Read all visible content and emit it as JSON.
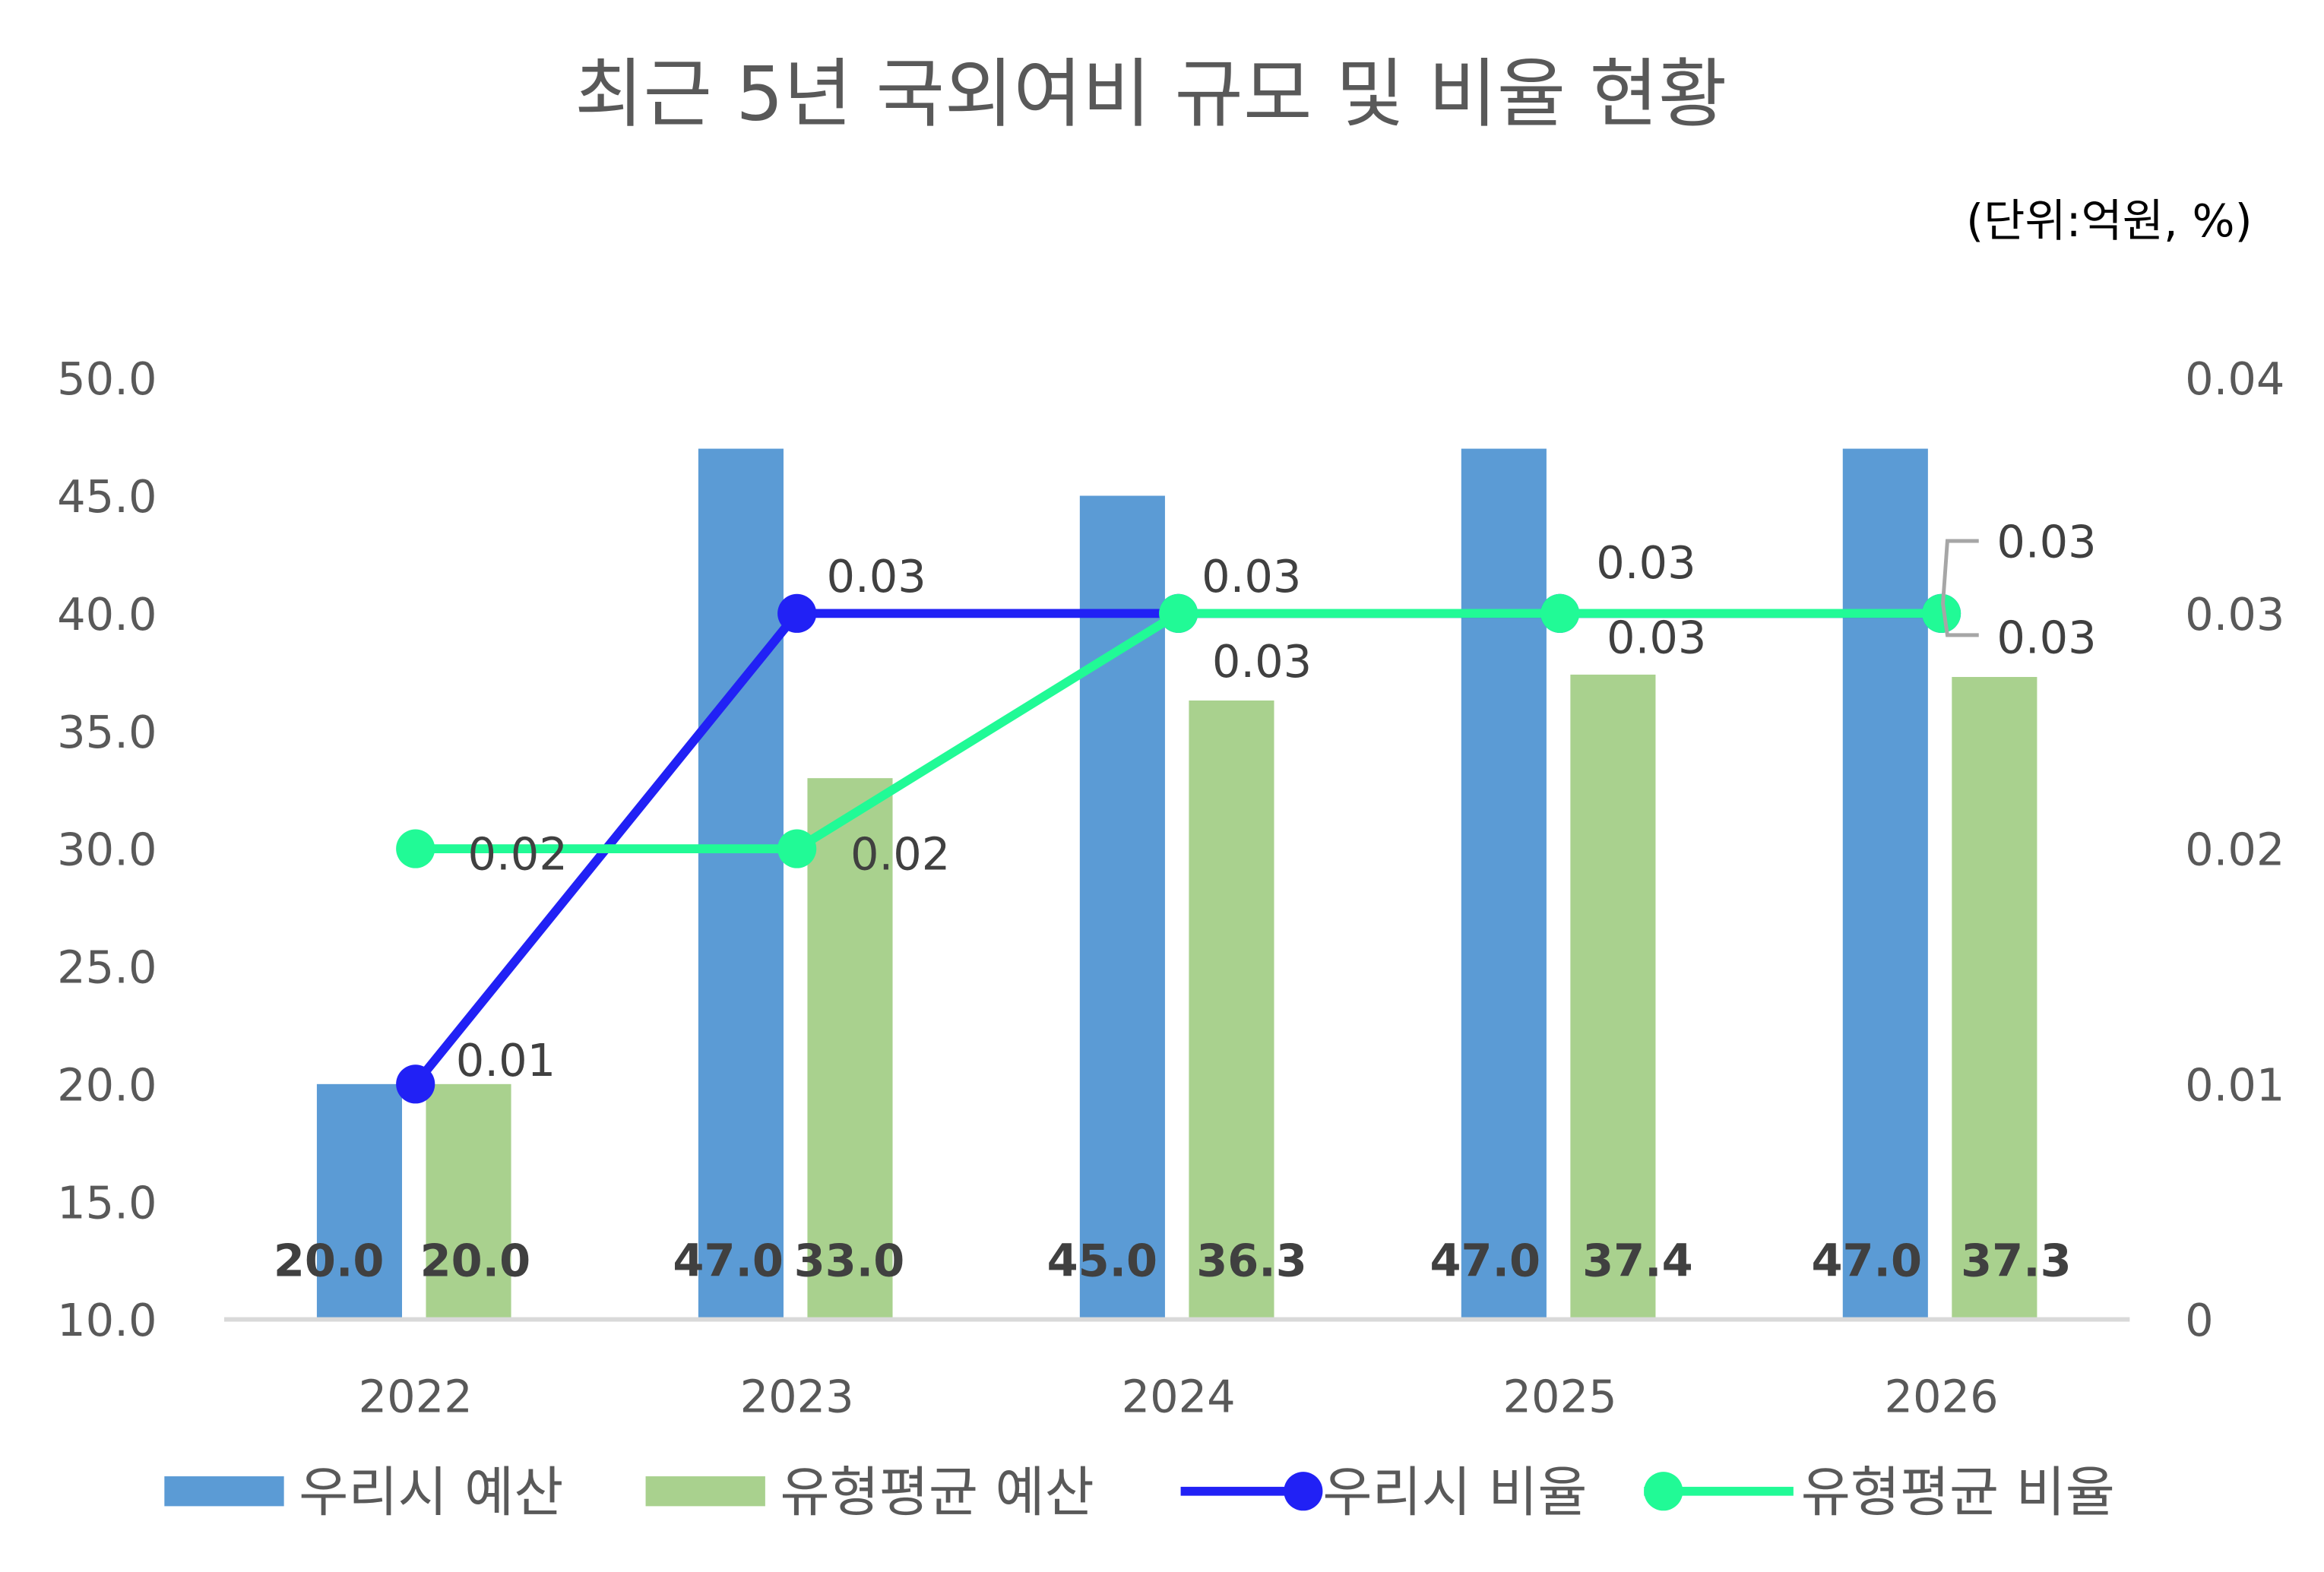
{
  "chart_data": {
    "type": "bar+line",
    "title": "최근 5년 국외여비 규모 및 비율 현황",
    "unit_note": "(단위:억원, %)",
    "categories": [
      "2022",
      "2023",
      "2024",
      "2025",
      "2026"
    ],
    "left_axis": {
      "ylim": [
        10,
        50
      ],
      "ticks": [
        "10.0",
        "15.0",
        "20.0",
        "25.0",
        "30.0",
        "35.0",
        "40.0",
        "45.0",
        "50.0"
      ]
    },
    "right_axis": {
      "ylim": [
        0,
        0.04
      ],
      "ticks": [
        "0",
        "0.01",
        "0.02",
        "0.03",
        "0.04"
      ]
    },
    "grid": false,
    "legend_position": "bottom",
    "series": [
      {
        "name": "우리시 예산",
        "type": "bar",
        "axis": "left",
        "color": "#5B9BD5",
        "values": [
          20.0,
          47.0,
          45.0,
          47.0,
          47.0
        ],
        "labels": [
          "20.0",
          "47.0",
          "45.0",
          "47.0",
          "47.0"
        ]
      },
      {
        "name": "유형평균 예산",
        "type": "bar",
        "axis": "left",
        "color": "#A9D18E",
        "values": [
          20.0,
          33.0,
          36.3,
          37.4,
          37.3
        ],
        "labels": [
          "20.0",
          "33.0",
          "36.3",
          "37.4",
          "37.3"
        ]
      },
      {
        "name": "우리시 비율",
        "type": "line",
        "axis": "right",
        "color": "#2121F5",
        "values": [
          0.01,
          0.03,
          0.03,
          0.03,
          0.03
        ],
        "labels": [
          "0.01",
          "0.03",
          "0.03",
          "0.03",
          "0.03"
        ]
      },
      {
        "name": "유형평균 비율",
        "type": "line",
        "axis": "right",
        "color": "#21FA96",
        "values": [
          0.02,
          0.02,
          0.03,
          0.03,
          0.03
        ],
        "labels": [
          "0.02",
          "0.02",
          "0.03",
          "0.03",
          "0.03"
        ]
      }
    ]
  }
}
